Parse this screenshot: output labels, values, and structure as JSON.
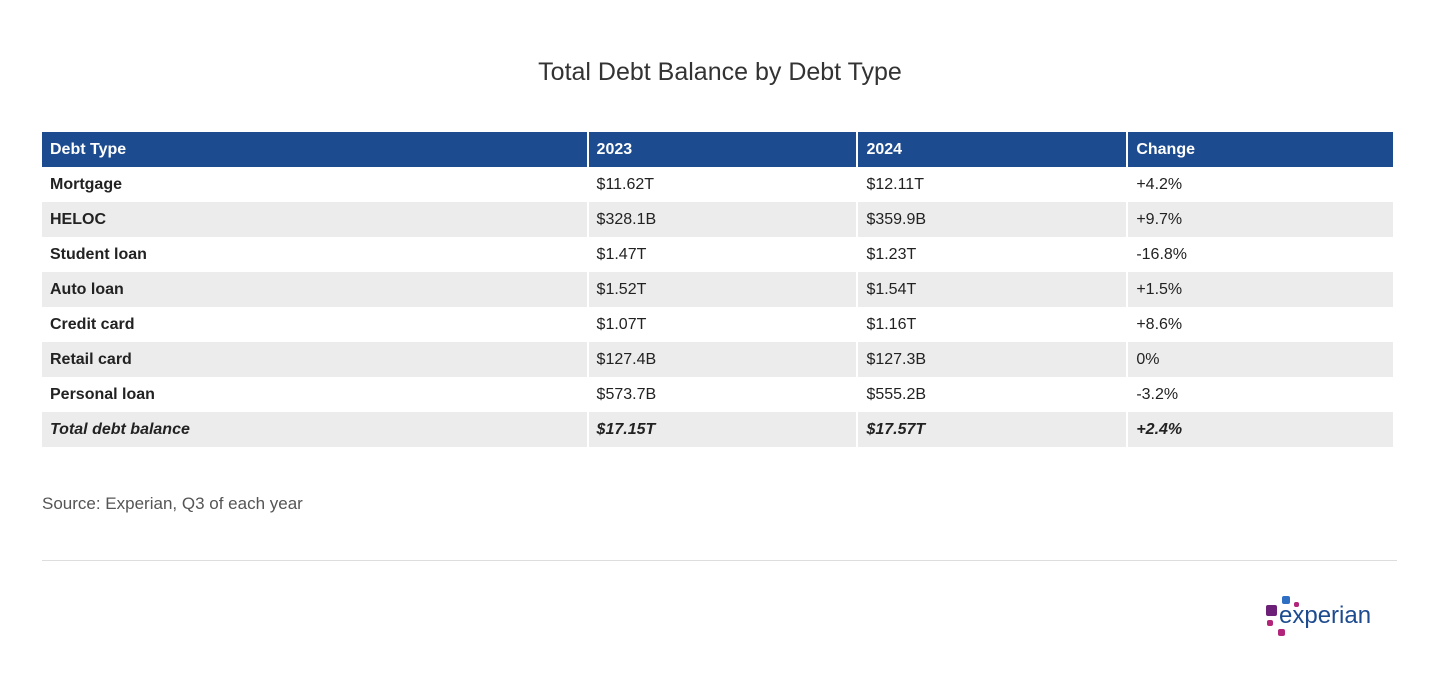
{
  "title": "Total Debt Balance by Debt Type",
  "table": {
    "headers": [
      "Debt Type",
      "2023",
      "2024",
      "Change"
    ],
    "rows": [
      [
        "Mortgage",
        "$11.62T",
        "$12.11T",
        "+4.2%"
      ],
      [
        "HELOC",
        "$328.1B",
        "$359.9B",
        "+9.7%"
      ],
      [
        "Student loan",
        "$1.47T",
        "$1.23T",
        "-16.8%"
      ],
      [
        "Auto loan",
        "$1.52T",
        "$1.54T",
        "+1.5%"
      ],
      [
        "Credit card",
        "$1.07T",
        "$1.16T",
        "+8.6%"
      ],
      [
        "Retail card",
        "$127.4B",
        "$127.3B",
        "0%"
      ],
      [
        "Personal loan",
        "$573.7B",
        "$555.2B",
        "-3.2%"
      ]
    ],
    "total": [
      "Total debt balance",
      "$17.15T",
      "$17.57T",
      "+2.4%"
    ]
  },
  "source": "Source: Experian, Q3 of each year",
  "logo": {
    "text": "experian",
    "colors": {
      "brand": "#1d4b8f",
      "purple": "#6d2077",
      "magenta": "#b1267a",
      "blue": "#2e6fc4"
    }
  }
}
